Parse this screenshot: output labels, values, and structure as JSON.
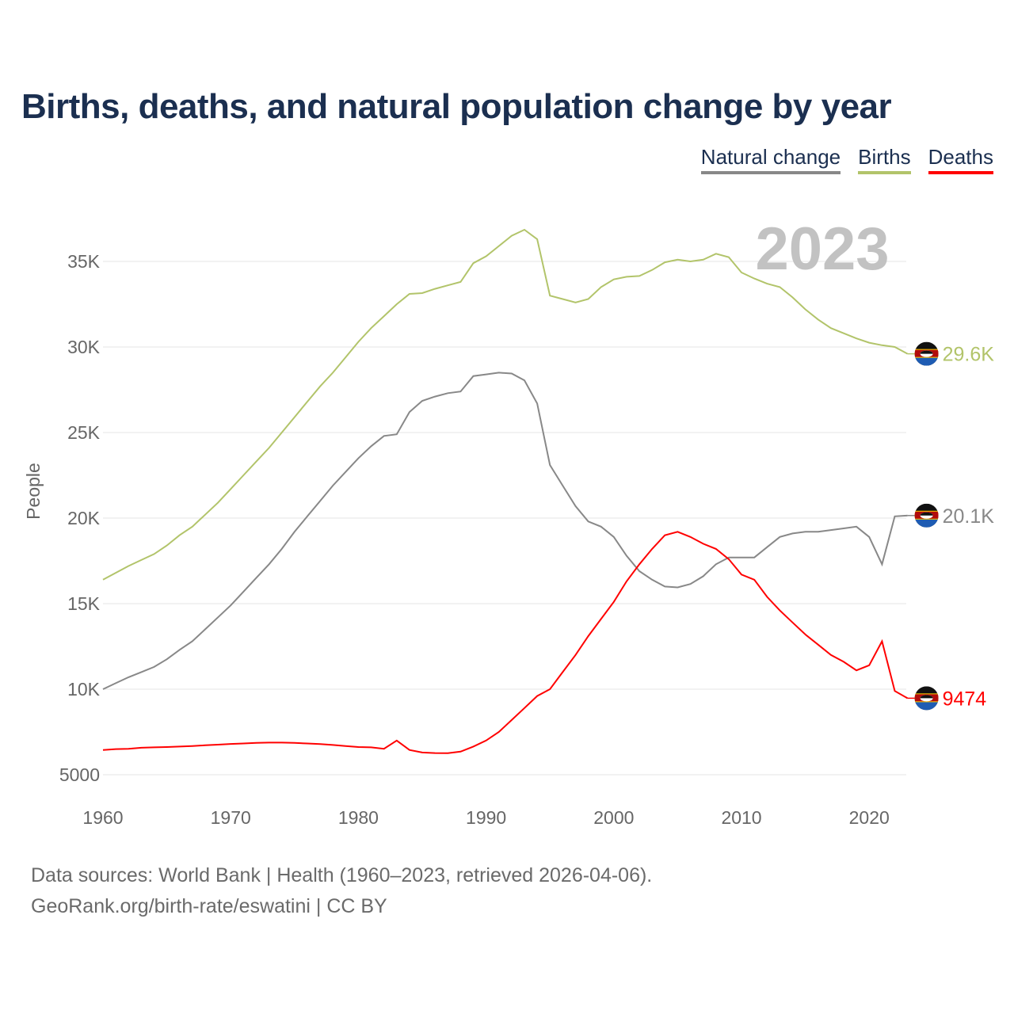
{
  "title": "Births, deaths, and natural population change by year",
  "legend": [
    {
      "label": "Natural change",
      "color": "#888888"
    },
    {
      "label": "Births",
      "color": "#b2c46a"
    },
    {
      "label": "Deaths",
      "color": "#ff0000"
    }
  ],
  "year_watermark": "2023",
  "end_labels": {
    "births": "29.6K",
    "natural": "20.1K",
    "deaths": "9474"
  },
  "flag_icon": "eswatini-flag",
  "footer": {
    "line1": "Data sources: World Bank | Health (1960–2023, retrieved 2026-04-06).",
    "line2": "GeoRank.org/birth-rate/eswatini | CC BY"
  },
  "chart_data": {
    "type": "line",
    "title": "Births, deaths, and natural population change by year",
    "xlabel": "",
    "ylabel": "People",
    "xlim": [
      1960,
      2023
    ],
    "ylim": [
      5000,
      37000
    ],
    "x_ticks": [
      1960,
      1970,
      1980,
      1990,
      2000,
      2010,
      2020
    ],
    "x_tick_labels": [
      "1960",
      "1970",
      "1980",
      "1990",
      "2000",
      "2010",
      "2020"
    ],
    "y_ticks": [
      5000,
      10000,
      15000,
      20000,
      25000,
      30000,
      35000
    ],
    "y_tick_labels": [
      "5000",
      "10K",
      "15K",
      "20K",
      "25K",
      "30K",
      "35K"
    ],
    "grid": true,
    "legend_position": "top-right",
    "x_start": 1960,
    "series": [
      {
        "name": "Natural change",
        "key": "natural",
        "color": "#888888",
        "values": [
          10000,
          10350,
          10700,
          11000,
          11300,
          11750,
          12300,
          12800,
          13500,
          14200,
          14900,
          15700,
          16500,
          17300,
          18200,
          19200,
          20100,
          21000,
          21900,
          22700,
          23500,
          24200,
          24800,
          24900,
          26200,
          26850,
          27100,
          27300,
          27400,
          28300,
          28400,
          28500,
          28450,
          28050,
          26700,
          23100,
          21900,
          20700,
          19800,
          19500,
          18900,
          17800,
          16900,
          16400,
          16000,
          15950,
          16150,
          16600,
          17300,
          17700,
          17700,
          17700,
          18300,
          18900,
          19100,
          19200,
          19200,
          19300,
          19400,
          19500,
          18900,
          17300,
          20100,
          20150
        ]
      },
      {
        "name": "Births",
        "key": "births",
        "color": "#b2c46a",
        "values": [
          16400,
          16800,
          17200,
          17550,
          17900,
          18400,
          19000,
          19500,
          20200,
          20900,
          21700,
          22500,
          23300,
          24100,
          25000,
          25900,
          26800,
          27700,
          28500,
          29400,
          30300,
          31100,
          31800,
          32500,
          33100,
          33150,
          33400,
          33600,
          33800,
          34900,
          35300,
          35900,
          36500,
          36850,
          36300,
          33000,
          32800,
          32600,
          32800,
          33500,
          33950,
          34100,
          34150,
          34500,
          34950,
          35100,
          35000,
          35100,
          35450,
          35250,
          34350,
          34000,
          33700,
          33500,
          32900,
          32200,
          31600,
          31100,
          30800,
          30500,
          30250,
          30100,
          30000,
          29600
        ]
      },
      {
        "name": "Deaths",
        "key": "deaths",
        "color": "#ff0000",
        "values": [
          6450,
          6500,
          6520,
          6580,
          6600,
          6620,
          6650,
          6680,
          6720,
          6760,
          6800,
          6830,
          6860,
          6880,
          6880,
          6860,
          6830,
          6790,
          6740,
          6680,
          6620,
          6600,
          6520,
          7000,
          6450,
          6300,
          6270,
          6260,
          6350,
          6650,
          7000,
          7500,
          8200,
          8900,
          9600,
          10000,
          11000,
          12000,
          13100,
          14100,
          15100,
          16300,
          17300,
          18200,
          19000,
          19200,
          18900,
          18500,
          18200,
          17600,
          16700,
          16400,
          15400,
          14600,
          13900,
          13200,
          12600,
          12000,
          11600,
          11100,
          11400,
          12800,
          9900,
          9474
        ]
      }
    ]
  }
}
